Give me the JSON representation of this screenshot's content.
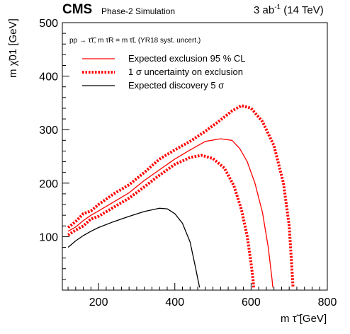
{
  "header": {
    "experiment": "CMS",
    "subtitle": "Phase-2 Simulation",
    "lumi_value": "3 ab",
    "lumi_exp": "-1",
    "lumi_energy": " (14 TeV)"
  },
  "process_label": "pp → τ̃τ̃, m τ̃R = m τ̃L (YR18 syst. uncert.)",
  "colors": {
    "exclusion": "#ff0000",
    "discovery": "#000000",
    "axis": "#000000"
  },
  "chart_data": {
    "type": "line",
    "xlabel": "m τ̃ [GeV]",
    "ylabel": "m χ̃01 [GeV]",
    "xlim": [
      105,
      800
    ],
    "ylim": [
      0,
      500
    ],
    "xticks": [
      200,
      400,
      600,
      800
    ],
    "yticks": [
      100,
      200,
      300,
      400,
      500
    ],
    "grid": false,
    "legend_position": "top-left",
    "series": [
      {
        "name": "Expected exclusion  95 % CL",
        "style": "solid",
        "color": "#ff0000",
        "x": [
          120,
          140,
          160,
          180,
          200,
          240,
          280,
          320,
          360,
          400,
          440,
          480,
          520,
          550,
          570,
          590,
          610,
          630,
          645,
          655,
          657
        ],
        "y": [
          110,
          118,
          130,
          140,
          148,
          165,
          182,
          205,
          225,
          245,
          262,
          278,
          283,
          280,
          265,
          240,
          200,
          145,
          80,
          20,
          5
        ]
      },
      {
        "name": "1 σ uncertainty on exclusion",
        "style": "dotted",
        "color": "#ff0000",
        "x": [
          120,
          140,
          160,
          180,
          200,
          240,
          280,
          320,
          360,
          400,
          440,
          480,
          520,
          550,
          575,
          600,
          630,
          660,
          685,
          700,
          707,
          710
        ],
        "y": [
          117,
          128,
          143,
          148,
          160,
          180,
          197,
          220,
          245,
          262,
          278,
          297,
          318,
          335,
          345,
          340,
          315,
          270,
          200,
          120,
          40,
          5
        ]
      },
      {
        "name": "",
        "style": "dotted",
        "color": "#ff0000",
        "x": [
          120,
          140,
          160,
          180,
          200,
          240,
          280,
          320,
          360,
          400,
          440,
          470,
          500,
          530,
          555,
          575,
          590,
          600,
          605,
          607
        ],
        "y": [
          103,
          112,
          120,
          133,
          138,
          155,
          172,
          193,
          215,
          235,
          248,
          252,
          246,
          228,
          195,
          150,
          100,
          50,
          20,
          5
        ]
      },
      {
        "name": "Expected discovery 5 σ",
        "style": "solid",
        "color": "#000000",
        "x": [
          120,
          140,
          160,
          180,
          200,
          240,
          280,
          320,
          360,
          380,
          400,
          420,
          440,
          455,
          462,
          465
        ],
        "y": [
          80,
          92,
          102,
          110,
          117,
          128,
          138,
          147,
          153,
          152,
          143,
          125,
          90,
          40,
          15,
          5
        ]
      }
    ]
  }
}
